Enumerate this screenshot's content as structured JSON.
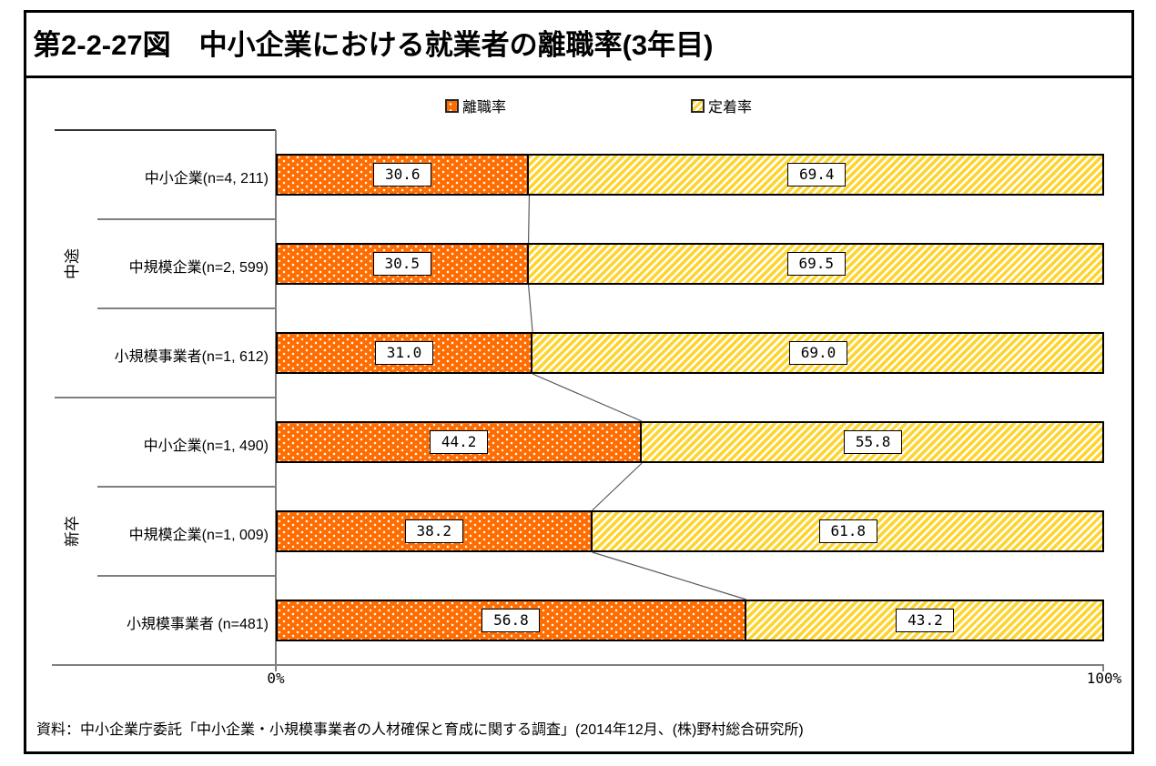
{
  "title": "第2-2-27図　中小企業における就業者の離職率(3年目)",
  "legend": [
    {
      "label": "離職率",
      "swatch": "orange-dotted-square",
      "color": "#FF6D01"
    },
    {
      "label": "定着率",
      "swatch": "yellow-striped-square",
      "color": "#FFD42E"
    }
  ],
  "axis": {
    "min_label": "0%",
    "max_label": "100%"
  },
  "source": "資料：中小企業庁委託「中小企業・小規模事業者の人材確保と育成に関する調査」(2014年12月、(株)野村総合研究所)",
  "colors": {
    "leave_fill": "#FF6D01",
    "stay_fill": "#FFD42E",
    "bar_border": "#000000",
    "axis_line": "#7f7f7f",
    "connector_line": "#595959",
    "frame_border": "#000000"
  },
  "chart_data": {
    "type": "bar",
    "orientation": "horizontal",
    "stacked": true,
    "unit": "%",
    "xlim": [
      0,
      100
    ],
    "x_tick_labels": [
      "0%",
      "100%"
    ],
    "legend_position": "top",
    "title": "第2-2-27図　中小企業における就業者の離職率(3年目)",
    "series_names": [
      "離職率",
      "定着率"
    ],
    "groups": [
      {
        "group": "中途",
        "rows": [
          {
            "label": "中小企業(n=4, 211)",
            "n": 4211,
            "leave": 30.6,
            "stay": 69.4
          },
          {
            "label": "中規模企業(n=2, 599)",
            "n": 2599,
            "leave": 30.5,
            "stay": 69.5
          },
          {
            "label": "小規模事業者(n=1, 612)",
            "n": 1612,
            "leave": 31.0,
            "stay": 69.0
          }
        ]
      },
      {
        "group": "新卒",
        "rows": [
          {
            "label": "中小企業(n=1, 490)",
            "n": 1490,
            "leave": 44.2,
            "stay": 55.8
          },
          {
            "label": "中規模企業(n=1, 009)",
            "n": 1009,
            "leave": 38.2,
            "stay": 61.8
          },
          {
            "label": "小規模事業者 (n=481)",
            "n": 481,
            "leave": 56.8,
            "stay": 43.2
          }
        ]
      }
    ]
  }
}
